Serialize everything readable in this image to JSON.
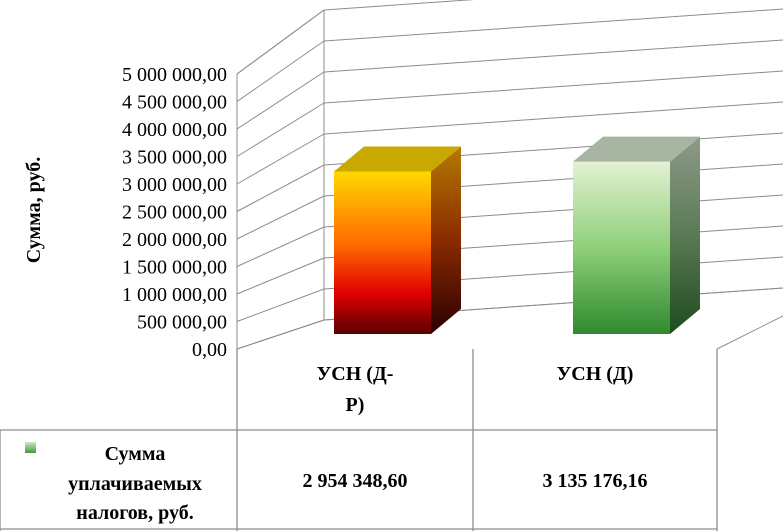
{
  "chart_data": {
    "type": "bar",
    "ylabel": "Сумма, руб.",
    "ylim": [
      0,
      5000000
    ],
    "y_ticks": [
      "0,00",
      "500 000,00",
      "1 000 000,00",
      "1 500 000,00",
      "2 000 000,00",
      "2 500 000,00",
      "3 000 000,00",
      "3 500 000,00",
      "4 000 000,00",
      "4 500 000,00",
      "5 000 000,00"
    ],
    "categories": [
      {
        "line1": "УСН (Д-",
        "line2": "Р)"
      },
      {
        "line1": "УСН (Д)",
        "line2": ""
      }
    ],
    "series": [
      {
        "name_lines": [
          "Сумма",
          "уплачиваемых",
          "налогов, руб."
        ],
        "values": [
          2954348.6,
          3135176.16
        ],
        "value_labels": [
          "2 954 348,60",
          "3 135 176,16"
        ]
      }
    ],
    "bar_colors": [
      {
        "top": "#ffd800",
        "bottom": "#5a0000",
        "side_top": "#b57a00",
        "side_bottom": "#2a0000",
        "cap": "#c9a800"
      },
      {
        "top": "#e3f2d3",
        "bottom": "#2e8a2e",
        "side_top": "#8e9a88",
        "side_bottom": "#1f4a1f",
        "cap": "#a9b5a3"
      }
    ],
    "legend_marker_color": "#6cb84a",
    "grid": true,
    "legend": "data-table"
  }
}
